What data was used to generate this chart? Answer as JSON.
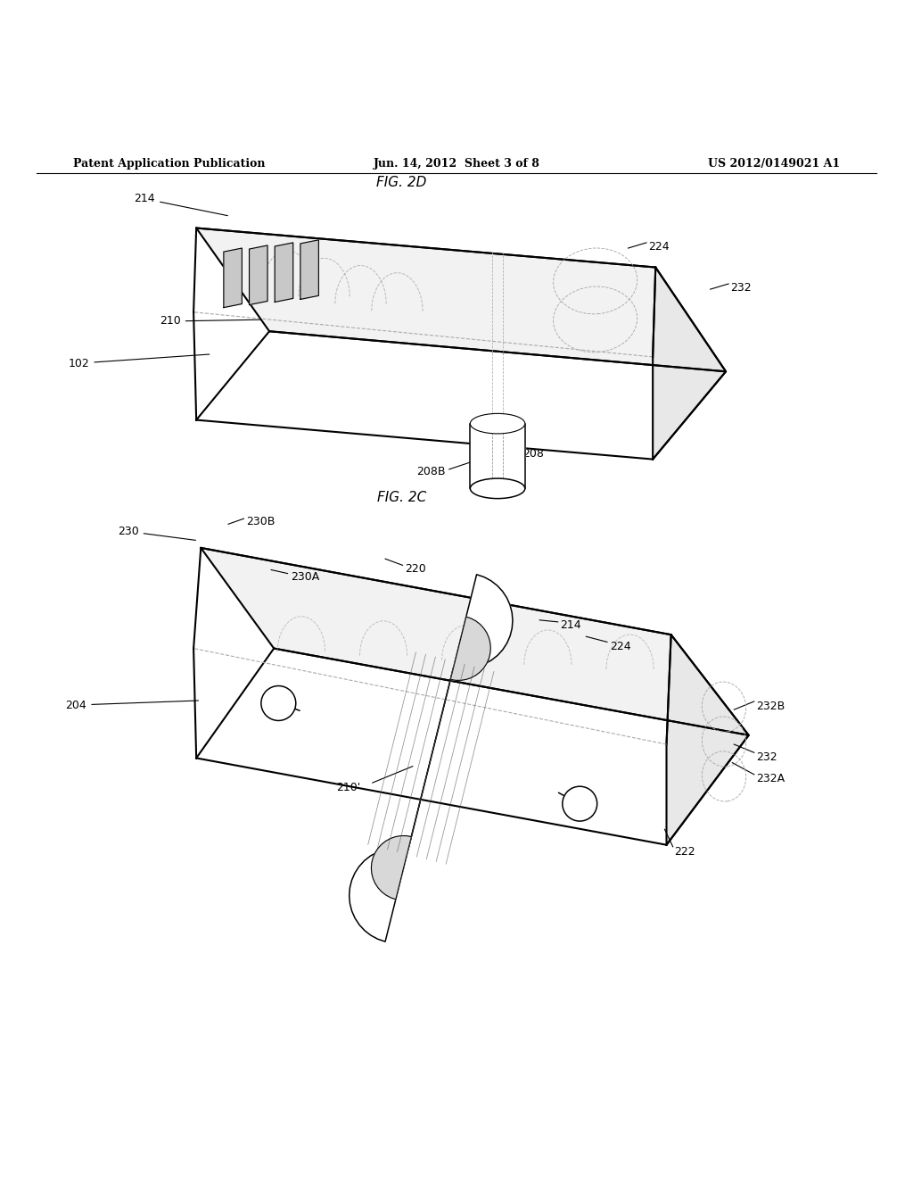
{
  "header_left": "Patent Application Publication",
  "header_mid": "Jun. 14, 2012  Sheet 3 of 8",
  "header_right": "US 2012/0149021 A1",
  "fig2c_label": "FIG. 2C",
  "fig2d_label": "FIG. 2D",
  "background_color": "#ffffff",
  "line_color": "#000000",
  "light_gray": "#bbbbbb",
  "dashed_color": "#aaaaaa"
}
